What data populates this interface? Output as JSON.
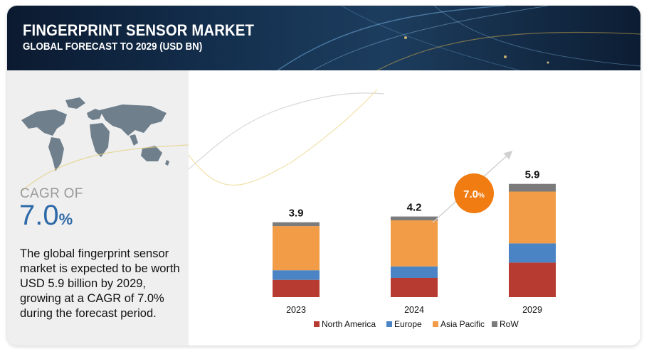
{
  "header": {
    "title": "FINGERPRINT SENSOR  MARKET",
    "subtitle": "GLOBAL FORECAST TO 2029 (USD BN)"
  },
  "side": {
    "cagr_label": "CAGR OF",
    "cagr_number": "7.0",
    "cagr_unit": "%",
    "description": "The global fingerprint sensor market is expected to be worth USD 5.9 billion by 2029, growing at a CAGR of 7.0% during the forecast period."
  },
  "colors": {
    "north_america": "#b83b32",
    "europe": "#4a84c4",
    "asia_pacific": "#f29c48",
    "row": "#7b7b7b",
    "badge": "#f07c12"
  },
  "chart_data": {
    "type": "bar",
    "stacked": true,
    "title": "FINGERPRINT SENSOR MARKET",
    "categories": [
      "2023",
      "2024",
      "2029"
    ],
    "series": [
      {
        "name": "North America",
        "values": [
          0.9,
          1.0,
          1.8
        ]
      },
      {
        "name": "Europe",
        "values": [
          0.5,
          0.6,
          1.0
        ]
      },
      {
        "name": "Asia Pacific",
        "values": [
          2.3,
          2.4,
          2.7
        ]
      },
      {
        "name": "RoW",
        "values": [
          0.2,
          0.2,
          0.4
        ]
      }
    ],
    "totals": [
      3.9,
      4.2,
      5.9
    ],
    "total_labels": [
      "3.9",
      "4.2",
      "5.9"
    ],
    "cagr_badge": {
      "number": "7.0",
      "unit": "%"
    },
    "legend_position": "bottom"
  }
}
